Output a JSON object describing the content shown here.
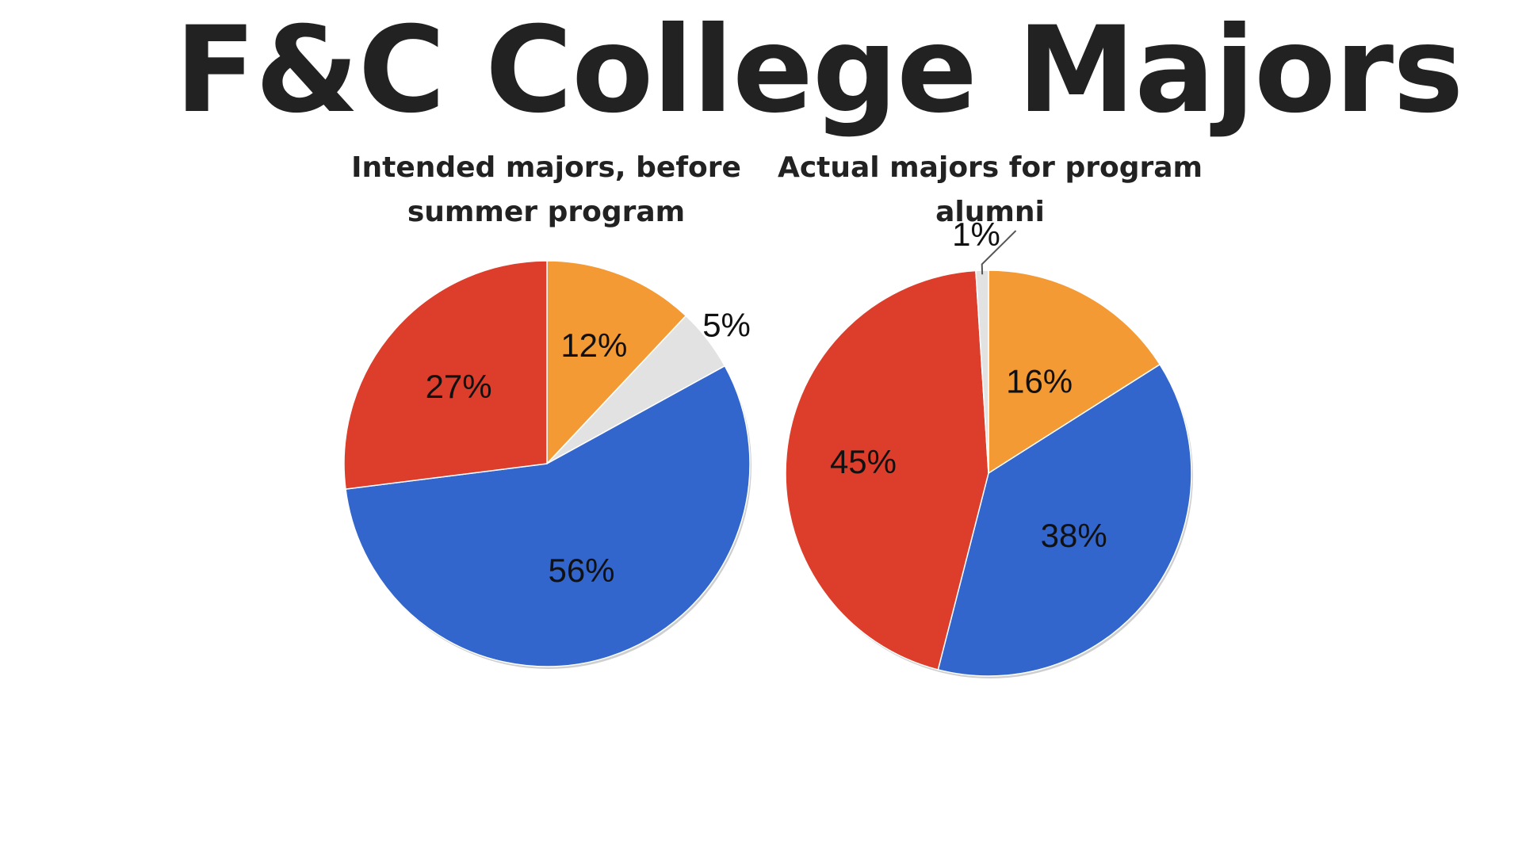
{
  "title": "F&C College Majors",
  "chart_data": [
    {
      "type": "pie",
      "title": "Intended majors, before summer program",
      "start_angle_deg": 0,
      "direction": "clockwise",
      "slices": [
        {
          "value": 12,
          "label": "12%",
          "color": "#f39a34"
        },
        {
          "value": 5,
          "label": "5%",
          "color": "#e2e2e2"
        },
        {
          "value": 56,
          "label": "56%",
          "color": "#3366cc"
        },
        {
          "value": 27,
          "label": "27%",
          "color": "#dc3e2b"
        }
      ]
    },
    {
      "type": "pie",
      "title": "Actual majors for program alumni",
      "start_angle_deg": 0,
      "direction": "clockwise",
      "slices": [
        {
          "value": 16,
          "label": "16%",
          "color": "#f39a34"
        },
        {
          "value": 38,
          "label": "38%",
          "color": "#3366cc"
        },
        {
          "value": 45,
          "label": "45%",
          "color": "#dc3e2b"
        },
        {
          "value": 1,
          "label": "1%",
          "color": "#e2e2e2"
        }
      ]
    }
  ]
}
